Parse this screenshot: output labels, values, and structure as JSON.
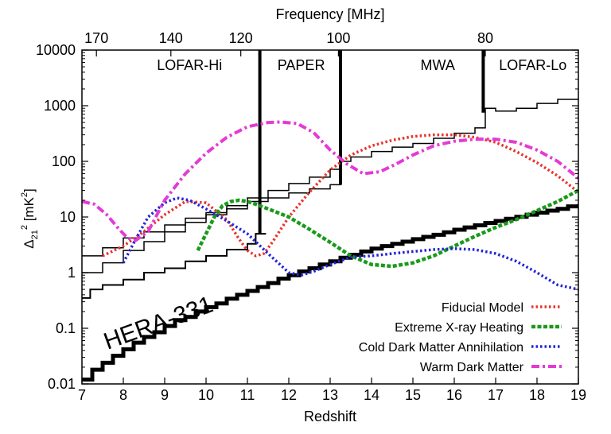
{
  "chart_data": {
    "type": "line",
    "top_axis": {
      "label": "Frequency [MHz]",
      "ticks": [
        {
          "label": "170",
          "z": 7.35
        },
        {
          "label": "140",
          "z": 9.15
        },
        {
          "label": "120",
          "z": 10.84
        },
        {
          "label": "100",
          "z": 13.2
        },
        {
          "label": "80",
          "z": 16.75
        }
      ]
    },
    "x_axis": {
      "label": "Redshift",
      "range": [
        7,
        19
      ],
      "ticks": [
        "7",
        "8",
        "9",
        "10",
        "11",
        "12",
        "13",
        "14",
        "15",
        "16",
        "17",
        "18",
        "19"
      ]
    },
    "y_axis": {
      "label_base": "Δ",
      "label_sub": "21",
      "label_sup1": "2",
      "label_mid": " [mK",
      "label_sup2": "2",
      "label_end": "]",
      "scale": "log",
      "range": [
        0.01,
        10000
      ],
      "ticks": [
        "0.01",
        "0.1",
        "1",
        "10",
        "100",
        "1000",
        "10000"
      ]
    },
    "instrument_labels": [
      {
        "text": "LOFAR-Hi",
        "z": 9.6
      },
      {
        "text": "PAPER",
        "z": 12.3
      },
      {
        "text": "MWA",
        "z": 15.6
      },
      {
        "text": "LOFAR-Lo",
        "z": 17.9
      }
    ],
    "sensitivity_label": "HERA-331",
    "legend": [
      {
        "label": "Fiducial Model",
        "color": "#e8332b",
        "style": "dotted"
      },
      {
        "label": "Extreme X-ray Heating",
        "color": "#1a9a1a",
        "style": "dashed"
      },
      {
        "label": "Cold Dark Matter Annihilation",
        "color": "#2424d8",
        "style": "dotted"
      },
      {
        "label": "Warm Dark Matter",
        "color": "#e43ad6",
        "style": "dashdot"
      }
    ],
    "series": [
      {
        "name": "Fiducial Model",
        "x": [
          7.5,
          8,
          8.5,
          9,
          9.5,
          10,
          10.5,
          10.8,
          11,
          11.2,
          11.4,
          11.6,
          12,
          12.5,
          13,
          13.5,
          14,
          14.5,
          15,
          15.5,
          16,
          16.5,
          17,
          17.5,
          18,
          18.5,
          19
        ],
        "y": [
          2.0,
          3.0,
          5.5,
          11,
          19,
          18,
          9,
          4,
          2.5,
          2.0,
          2.2,
          3.5,
          10,
          28,
          70,
          130,
          190,
          240,
          280,
          300,
          300,
          270,
          220,
          150,
          95,
          55,
          28
        ]
      },
      {
        "name": "Extreme X-ray Heating",
        "x": [
          9.8,
          10,
          10.2,
          10.4,
          10.6,
          10.8,
          11,
          11.2,
          11.5,
          12,
          12.5,
          13,
          13.5,
          14,
          14.5,
          15,
          15.5,
          16,
          16.5,
          17,
          17.5,
          18,
          18.5,
          19
        ],
        "y": [
          2.5,
          5,
          10,
          16,
          19,
          20,
          19,
          17,
          14,
          10,
          6,
          3.5,
          2.0,
          1.4,
          1.3,
          1.5,
          2,
          3,
          4.5,
          6.5,
          9,
          13,
          19,
          30
        ]
      },
      {
        "name": "Cold Dark Matter Annihilation",
        "x": [
          8,
          8.3,
          8.6,
          9,
          9.3,
          9.6,
          10,
          10.5,
          11,
          11.5,
          12,
          12.3,
          12.6,
          13,
          13.5,
          14,
          14.5,
          15,
          15.5,
          16,
          16.5,
          17,
          17.5,
          18,
          18.5,
          19
        ],
        "y": [
          1.5,
          4,
          10,
          18,
          22,
          20,
          14,
          8.5,
          5,
          2.2,
          1.0,
          0.9,
          1.05,
          1.4,
          1.9,
          2.0,
          2.2,
          2.4,
          2.6,
          2.7,
          2.6,
          2.2,
          1.6,
          1.0,
          0.6,
          0.5
        ]
      },
      {
        "name": "Warm Dark Matter",
        "x": [
          7,
          7.3,
          7.6,
          7.9,
          8.1,
          8.3,
          8.6,
          9,
          9.5,
          10,
          10.5,
          11,
          11.5,
          11.8,
          12.2,
          12.6,
          13,
          13.4,
          13.8,
          14.2,
          14.6,
          15,
          15.5,
          16,
          16.5,
          17,
          17.5,
          18,
          18.5,
          19
        ],
        "y": [
          19,
          17,
          11,
          6,
          4.2,
          3.8,
          5.5,
          20,
          60,
          140,
          270,
          420,
          500,
          510,
          480,
          330,
          160,
          90,
          60,
          65,
          90,
          130,
          190,
          230,
          250,
          250,
          220,
          160,
          100,
          50
        ]
      }
    ],
    "sensitivity_curves": [
      {
        "name": "HERA-331",
        "steps": [
          [
            7,
            0.012
          ],
          [
            7.25,
            0.018
          ],
          [
            7.5,
            0.024
          ],
          [
            7.75,
            0.032
          ],
          [
            8,
            0.042
          ],
          [
            8.25,
            0.055
          ],
          [
            8.5,
            0.07
          ],
          [
            8.75,
            0.085
          ],
          [
            9,
            0.11
          ],
          [
            9.25,
            0.14
          ],
          [
            9.5,
            0.16
          ],
          [
            9.75,
            0.2
          ],
          [
            10,
            0.24
          ],
          [
            10.25,
            0.28
          ],
          [
            10.5,
            0.34
          ],
          [
            10.75,
            0.4
          ],
          [
            11,
            0.47
          ],
          [
            11.25,
            0.55
          ],
          [
            11.5,
            0.65
          ],
          [
            11.75,
            0.78
          ],
          [
            12,
            0.9
          ],
          [
            12.25,
            1.05
          ],
          [
            12.5,
            1.2
          ],
          [
            12.75,
            1.4
          ],
          [
            13,
            1.6
          ],
          [
            13.25,
            1.85
          ],
          [
            13.5,
            2.1
          ],
          [
            13.75,
            2.4
          ],
          [
            14,
            2.7
          ],
          [
            14.25,
            3.0
          ],
          [
            14.5,
            3.3
          ],
          [
            14.75,
            3.6
          ],
          [
            15,
            4.0
          ],
          [
            15.25,
            4.4
          ],
          [
            15.5,
            4.8
          ],
          [
            15.75,
            5.3
          ],
          [
            16,
            5.9
          ],
          [
            16.25,
            6.5
          ],
          [
            16.5,
            7.1
          ],
          [
            16.75,
            7.8
          ],
          [
            17,
            8.5
          ],
          [
            17.25,
            9.3
          ],
          [
            17.5,
            10.1
          ],
          [
            17.75,
            11
          ],
          [
            18,
            12
          ],
          [
            18.25,
            13
          ],
          [
            18.5,
            14
          ],
          [
            18.75,
            15.5
          ],
          [
            19,
            17
          ]
        ]
      },
      {
        "name": "LOFAR-Hi / PAPER step",
        "steps": [
          [
            7,
            0.35
          ],
          [
            7.2,
            0.5
          ],
          [
            7.5,
            0.6
          ],
          [
            8,
            0.75
          ],
          [
            8.5,
            1.0
          ],
          [
            9,
            1.2
          ],
          [
            9.5,
            1.6
          ],
          [
            10,
            2.0
          ],
          [
            10.5,
            2.6
          ],
          [
            11,
            3.3
          ],
          [
            11.2,
            5.0
          ]
        ]
      },
      {
        "name": "MWA/PAPER upper A",
        "steps": [
          [
            7,
            1.0
          ],
          [
            7.5,
            1.5
          ],
          [
            8,
            2.5
          ],
          [
            8.5,
            3.6
          ],
          [
            9,
            5.4
          ],
          [
            9.5,
            8
          ],
          [
            10,
            11
          ],
          [
            10.5,
            14
          ],
          [
            11,
            19
          ],
          [
            11.5,
            22
          ],
          [
            12,
            27
          ],
          [
            12.5,
            32
          ],
          [
            13,
            38
          ],
          [
            13.25,
            100
          ],
          [
            13.5,
            120
          ],
          [
            14,
            150
          ],
          [
            14.5,
            180
          ],
          [
            15,
            210
          ],
          [
            15.5,
            260
          ],
          [
            16,
            320
          ],
          [
            16.5,
            400
          ],
          [
            16.75,
            900
          ],
          [
            17,
            800
          ],
          [
            17.5,
            900
          ],
          [
            18,
            1100
          ],
          [
            18.5,
            1300
          ],
          [
            19,
            1400
          ]
        ]
      },
      {
        "name": "MWA/PAPER upper B",
        "steps": [
          [
            7,
            2.0
          ],
          [
            7.5,
            2.8
          ],
          [
            8,
            4.2
          ],
          [
            8.5,
            5.4
          ],
          [
            9,
            7.2
          ],
          [
            9.5,
            9.5
          ],
          [
            10,
            12
          ],
          [
            10.5,
            16
          ],
          [
            11,
            22
          ],
          [
            11.5,
            30
          ],
          [
            12,
            40
          ],
          [
            12.5,
            52
          ],
          [
            13,
            72
          ]
        ]
      }
    ],
    "band_edges": [
      {
        "z": 11.3,
        "top": 10000,
        "bottom": 5.0
      },
      {
        "z": 13.25,
        "top": 10000,
        "bottom": 38
      },
      {
        "z": 16.7,
        "top": 10000,
        "bottom": 750
      }
    ]
  }
}
